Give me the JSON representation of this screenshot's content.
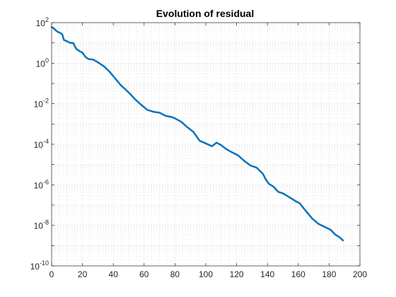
{
  "chart_data": {
    "type": "line",
    "title": "Evolution of residual",
    "xlabel": "",
    "ylabel": "",
    "xlim": [
      0,
      200
    ],
    "ylim": [
      1e-10,
      100
    ],
    "yscale": "log",
    "grid": "on (major and minor)",
    "legend": "none",
    "x_ticks": [
      "0",
      "20",
      "40",
      "60",
      "80",
      "100",
      "120",
      "140",
      "160",
      "180",
      "200"
    ],
    "y_ticks": [
      {
        "base": "10",
        "exp": "-10"
      },
      {
        "base": "10",
        "exp": "-8"
      },
      {
        "base": "10",
        "exp": "-6"
      },
      {
        "base": "10",
        "exp": "-4"
      },
      {
        "base": "10",
        "exp": "-2"
      },
      {
        "base": "10",
        "exp": "0"
      },
      {
        "base": "10",
        "exp": "2"
      }
    ],
    "series": [
      {
        "color": "#0072bd",
        "x": [
          0,
          1,
          3,
          4,
          6,
          7,
          8,
          10,
          12,
          14,
          16,
          18,
          20,
          22,
          24,
          27,
          30,
          34,
          38,
          42,
          45,
          48,
          51,
          54,
          58,
          62,
          66,
          70,
          74,
          78,
          80,
          84,
          88,
          92,
          96,
          100,
          104,
          107,
          110,
          113,
          117,
          121,
          125,
          129,
          133,
          137,
          139,
          141,
          144,
          147,
          150,
          154,
          158,
          161,
          165,
          169,
          173,
          177,
          181,
          184,
          187,
          189
        ],
        "y": [
          60,
          55,
          40,
          35,
          30,
          25,
          14,
          12,
          10,
          10,
          5,
          4,
          3.3,
          2,
          1.6,
          1.5,
          1.1,
          0.7,
          0.35,
          0.15,
          0.08,
          0.05,
          0.03,
          0.017,
          0.009,
          0.005,
          0.004,
          0.0036,
          0.0025,
          0.0022,
          0.0019,
          0.0013,
          0.0007,
          0.0004,
          0.00015,
          0.00011,
          8e-05,
          0.00012,
          9e-05,
          6e-05,
          4e-05,
          2.8e-05,
          1.5e-05,
          9e-06,
          7e-06,
          3.5e-06,
          1.8e-06,
          1.1e-06,
          8e-07,
          4.5e-07,
          3.8e-07,
          2.5e-07,
          1.6e-07,
          1.2e-07,
          5e-08,
          2.2e-08,
          1.2e-08,
          8.5e-09,
          6e-09,
          3.5e-09,
          2.5e-09,
          1.8e-09
        ]
      }
    ]
  }
}
